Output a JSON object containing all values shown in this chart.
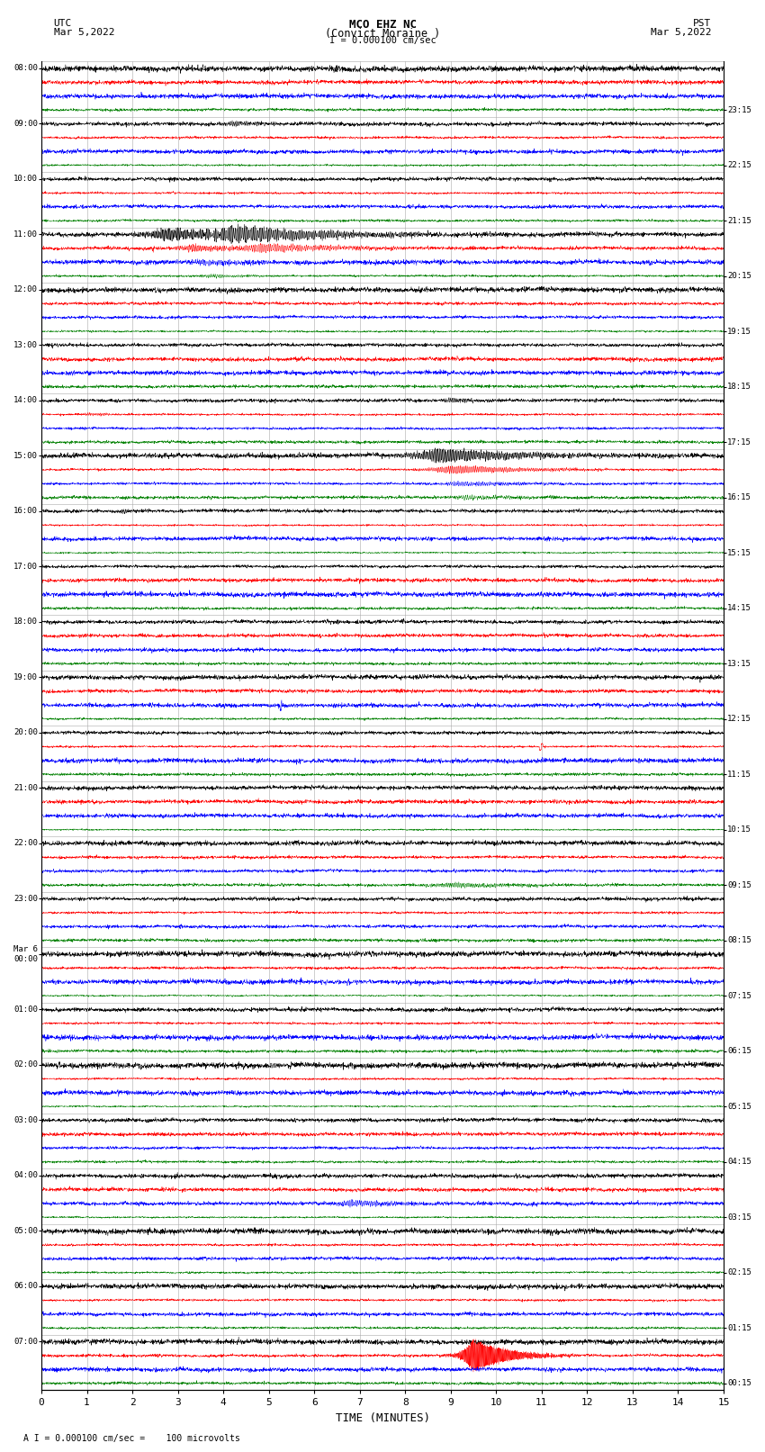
{
  "title_line1": "MCO EHZ NC",
  "title_line2": "(Convict Moraine )",
  "title_scale": "I = 0.000100 cm/sec",
  "label_utc": "UTC",
  "label_pst": "PST",
  "label_date_utc": "Mar 5,2022",
  "label_date_pst": "Mar 5,2022",
  "xlabel": "TIME (MINUTES)",
  "footer": "A I = 0.000100 cm/sec =    100 microvolts",
  "trace_colors": [
    "black",
    "red",
    "blue",
    "green"
  ],
  "utc_times": [
    "08:00",
    "09:00",
    "10:00",
    "11:00",
    "12:00",
    "13:00",
    "14:00",
    "15:00",
    "16:00",
    "17:00",
    "18:00",
    "19:00",
    "20:00",
    "21:00",
    "22:00",
    "23:00",
    "Mar 6\n00:00",
    "01:00",
    "02:00",
    "03:00",
    "04:00",
    "05:00",
    "06:00",
    "07:00"
  ],
  "pst_times": [
    "00:15",
    "01:15",
    "02:15",
    "03:15",
    "04:15",
    "05:15",
    "06:15",
    "07:15",
    "08:15",
    "09:15",
    "10:15",
    "11:15",
    "12:15",
    "13:15",
    "14:15",
    "15:15",
    "16:15",
    "17:15",
    "18:15",
    "19:15",
    "20:15",
    "21:15",
    "22:15",
    "23:15"
  ],
  "xlim": [
    0,
    15
  ],
  "xticks": [
    0,
    1,
    2,
    3,
    4,
    5,
    6,
    7,
    8,
    9,
    10,
    11,
    12,
    13,
    14,
    15
  ],
  "bg_color": "white",
  "noise_base": 0.18,
  "fig_width": 8.5,
  "fig_height": 16.13,
  "dpi": 100,
  "n_points": 3000,
  "trace_scale": 0.38,
  "traces_per_hour": 4,
  "grid_color": "#aaaaaa",
  "grid_lw": 0.4
}
